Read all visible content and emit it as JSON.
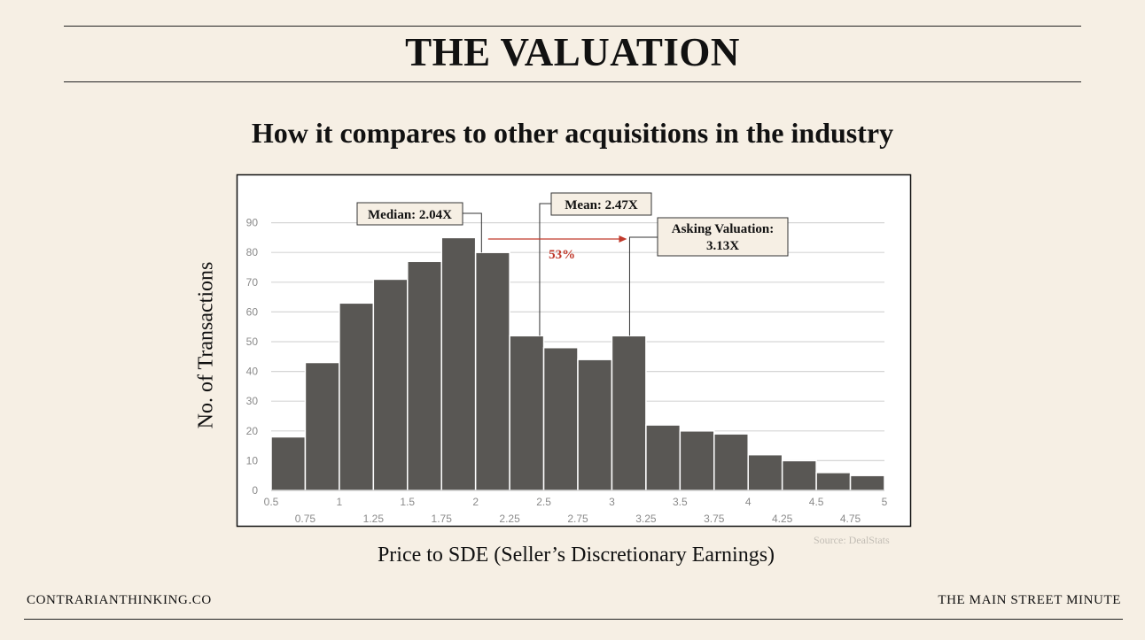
{
  "header": {
    "title": "THE VALUATION",
    "subtitle": "How it compares to other acquisitions in the industry"
  },
  "footer": {
    "left": "CONTRARIANTHINKING.CO",
    "right": "THE MAIN STREET MINUTE"
  },
  "source": "Source: DealStats",
  "colors": {
    "background": "#f6efe4",
    "bar": "#595754",
    "arrow": "#c0392b",
    "callout_bg": "#f6efe4"
  },
  "chart_data": {
    "type": "bar",
    "title": "How it compares to other acquisitions in the industry",
    "xlabel": "Price to SDE (Seller’s Discretionary Earnings)",
    "ylabel": "No. of Transactions",
    "ylim": [
      0,
      100
    ],
    "xlim": [
      0.5,
      5
    ],
    "bin_width": 0.25,
    "categories": [
      0.5,
      0.75,
      1,
      1.25,
      1.5,
      1.75,
      2,
      2.25,
      2.5,
      2.75,
      3,
      3.25,
      3.5,
      3.75,
      4,
      4.25,
      4.5,
      4.75
    ],
    "values": [
      18,
      43,
      63,
      71,
      77,
      85,
      80,
      52,
      48,
      44,
      52,
      22,
      20,
      19,
      12,
      10,
      6,
      5
    ],
    "yticks": [
      0,
      10,
      20,
      30,
      40,
      50,
      60,
      70,
      80,
      90
    ],
    "xticks_major": [
      "0.5",
      "1",
      "1.5",
      "2",
      "2.5",
      "3",
      "3.5",
      "4",
      "4.5",
      "5"
    ],
    "xticks_minor": [
      "0.75",
      "1.25",
      "1.75",
      "2.25",
      "2.75",
      "3.25",
      "3.75",
      "4.25",
      "4.75"
    ],
    "grid": true,
    "annotations": [
      {
        "label": "Median: 2.04X",
        "x": 2.04
      },
      {
        "label": "Mean: 2.47X",
        "x": 2.47
      },
      {
        "label": "Asking Valuation:",
        "label2": "3.13X",
        "x": 3.13
      }
    ],
    "arrow": {
      "from": 2.04,
      "to": 3.13,
      "label": "53%"
    }
  }
}
